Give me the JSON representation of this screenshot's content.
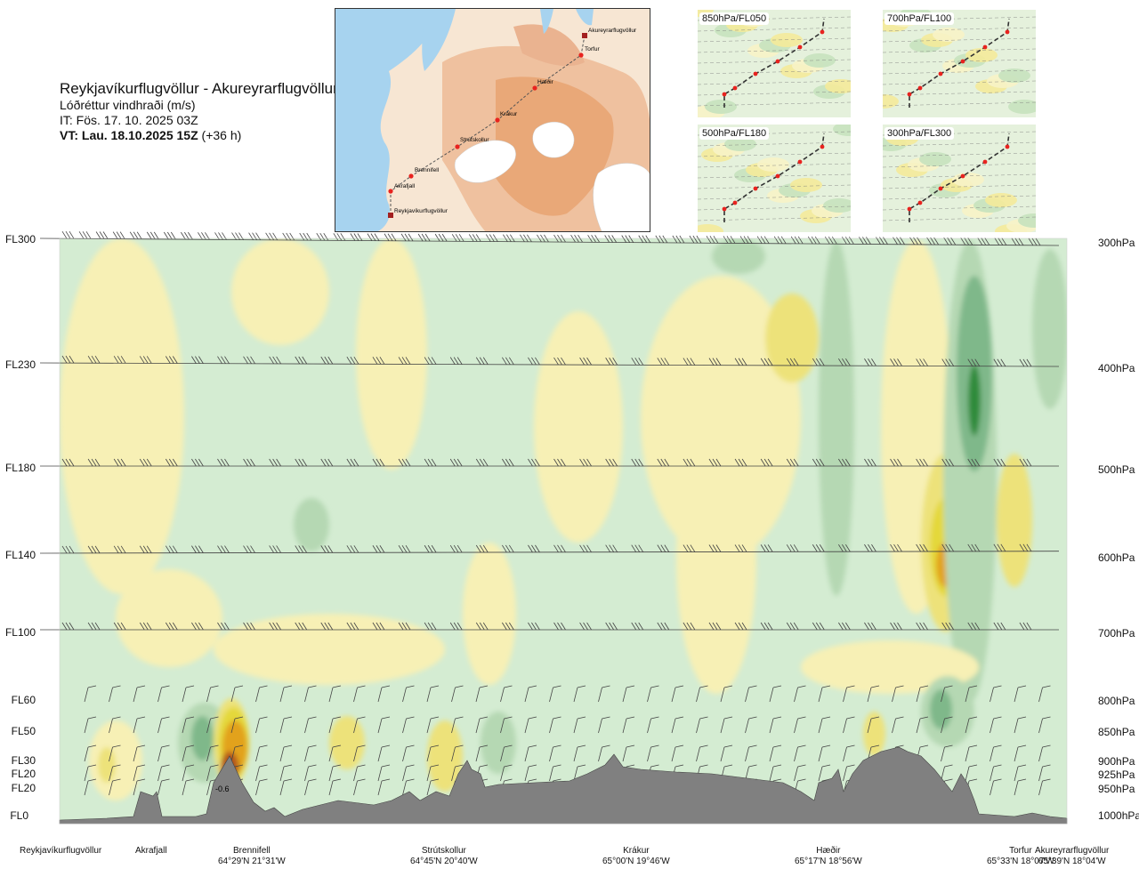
{
  "title": {
    "route": "Reykjavíkurflugvöllur - Akureyrarflugvöllur",
    "quantity": "Lóðréttur vindhraði (m/s)",
    "issue_time": "IT: Fös. 17. 10. 2025 03Z",
    "valid_time_bold": "VT: Lau. 18.10.2025 15Z",
    "valid_offset": "(+36 h)"
  },
  "map": {
    "waypoints": [
      "Reykjavíkurflugvöllur",
      "Akrafjall",
      "Brennifell",
      "Strútskollur",
      "Krákur",
      "Hæðir",
      "Torfur",
      "Akureyrarflugvöllur"
    ],
    "colors": {
      "sea": "#a7d3ef",
      "land_low": "#f7e6d3",
      "land_high": "#e9a878",
      "ice": "#ffffff",
      "track": "#555555",
      "point": "#e8231f"
    }
  },
  "thumbnails": [
    {
      "label": "850hPa/FL050"
    },
    {
      "label": "700hPa/FL100"
    },
    {
      "label": "500hPa/FL180"
    },
    {
      "label": "300hPa/FL300"
    }
  ],
  "chart_data": {
    "type": "heatmap",
    "title": "Reykjavíkurflugvöllur - Akureyrarflugvöllur",
    "variable": "Lóðréttur vindhraði (m/s)",
    "left_axis_labels": [
      "FL300",
      "FL230",
      "FL180",
      "FL140",
      "FL100",
      "FL60",
      "FL50",
      "FL30",
      "FL20",
      "FL20",
      "FL0"
    ],
    "right_axis_labels": [
      "300hPa",
      "400hPa",
      "500hPa",
      "600hPa",
      "700hPa",
      "800hPa",
      "850hPa",
      "900hPa",
      "925hPa",
      "950hPa",
      "1000hPa"
    ],
    "pressure_levels_hPa": [
      300,
      400,
      500,
      600,
      700,
      800,
      850,
      900,
      925,
      950,
      1000
    ],
    "x_stations": [
      {
        "name": "Reykjavíkurflugvöllur",
        "coord": ""
      },
      {
        "name": "Akrafjall",
        "coord": ""
      },
      {
        "name": "Brennifell",
        "coord": "64°29'N 21°31'W"
      },
      {
        "name": "Strútskollur",
        "coord": "64°45'N 20°40'W"
      },
      {
        "name": "Krákur",
        "coord": "65°00'N 19°46'W"
      },
      {
        "name": "Hæðir",
        "coord": "65°17'N 18°56'W"
      },
      {
        "name": "Torfur",
        "coord": "65°33'N 18°07'W"
      },
      {
        "name": "Akureyrarflugvöllur",
        "coord": "65°39'N 18°04'W"
      }
    ],
    "contour_label": "-0.6",
    "legend_colors": {
      "strong_down": "#2e8b3a",
      "moderate_down": "#7fb88a",
      "weak_down": "#b5d8b3",
      "slight_down": "#d4ecd2",
      "neutral": "#ffffff",
      "slight_up": "#f7f0b5",
      "weak_up": "#ede27a",
      "moderate_up": "#e4d83a",
      "strong_up": "#e2a21b",
      "very_strong_up": "#b2541a",
      "extreme_up": "#6b2a0e"
    },
    "terrain_color": "#808080"
  }
}
